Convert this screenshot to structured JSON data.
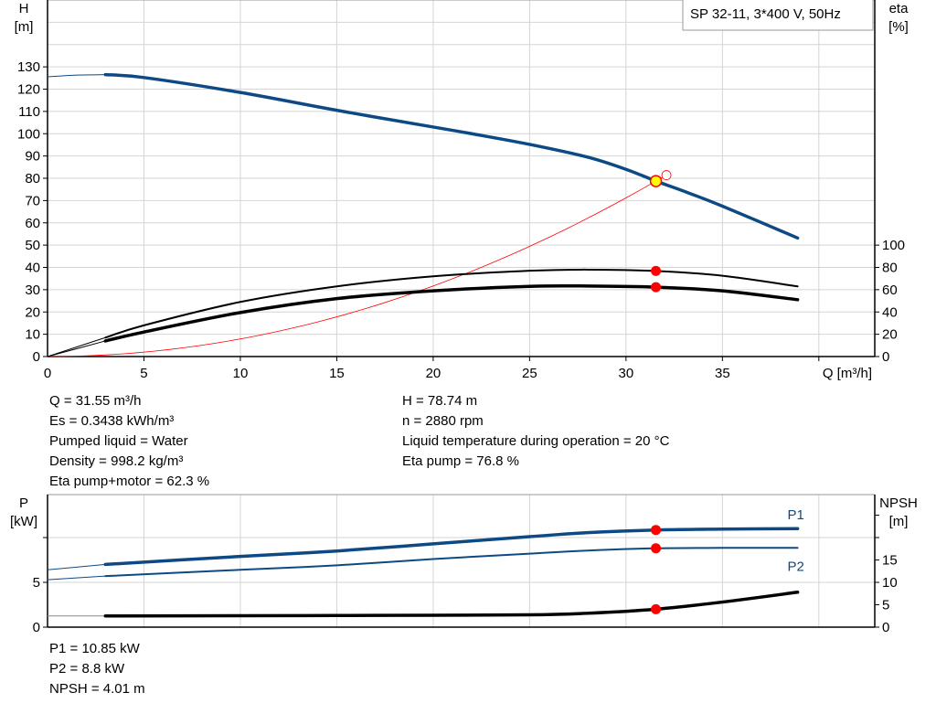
{
  "chart_data": [
    {
      "type": "line",
      "title": "SP 32-11, 3*400 V, 50Hz",
      "xlabel": "Q [m³/h]",
      "ylabel_left": [
        "H",
        "[m]"
      ],
      "ylabel_right": [
        "eta",
        "[%]"
      ],
      "xlim": [
        0,
        42.9
      ],
      "ylim_left": [
        0,
        160
      ],
      "ylim_right": [
        0,
        320
      ],
      "xticks": [
        0,
        5,
        10,
        15,
        20,
        25,
        30,
        35
      ],
      "xgrid": [
        5,
        10,
        15,
        20,
        25,
        30,
        35,
        40
      ],
      "yticks_left": [
        0,
        10,
        20,
        30,
        40,
        50,
        60,
        70,
        80,
        90,
        100,
        110,
        120,
        130
      ],
      "ygrid_left": [
        10,
        20,
        30,
        40,
        50,
        60,
        70,
        80,
        90,
        100,
        110,
        120,
        130,
        140,
        150
      ],
      "yticks_right": [
        0,
        20,
        40,
        60,
        80,
        100
      ],
      "grid": true,
      "thin_until": 3,
      "series": [
        {
          "axis": "left",
          "color": "#0d4a85",
          "width": 3.5,
          "x": [
            0,
            1.5,
            3,
            5,
            10,
            15,
            20,
            22,
            25,
            28,
            30,
            31.55,
            33,
            35,
            38.9
          ],
          "y": [
            125.5,
            126.3,
            126.5,
            125.2,
            118.5,
            110.5,
            103,
            100,
            95.2,
            89.5,
            84,
            78.74,
            74.2,
            67.5,
            53.2
          ]
        },
        {
          "axis": "right",
          "color": "#000000",
          "width": 2,
          "x": [
            0,
            3,
            5,
            10,
            15,
            20,
            25,
            28,
            31.55,
            35,
            38.9
          ],
          "y": [
            0,
            17,
            28,
            49,
            63,
            72,
            77,
            78,
            76.8,
            72.5,
            63
          ]
        },
        {
          "axis": "right",
          "color": "#000000",
          "width": 3.5,
          "x": [
            0,
            3,
            5,
            10,
            15,
            20,
            25,
            28,
            31.55,
            35,
            38.9
          ],
          "y": [
            0,
            14,
            22,
            39.5,
            52,
            59,
            63,
            63.3,
            62.3,
            59,
            51
          ]
        }
      ],
      "system_curve": {
        "color": "#ff0000",
        "h_at_duty": 78.74,
        "q_at_duty": 31.55,
        "q_end": 32,
        "h_end": 81
      },
      "duty_point": {
        "x": 31.55,
        "y": 78.74,
        "fill": "#ffff00",
        "stroke": "#ff0000"
      },
      "eta_points": [
        76.8,
        62.3
      ],
      "marker_color": "#ff0000"
    },
    {
      "type": "line",
      "ylabel_left": [
        "P",
        "[kW]"
      ],
      "ylabel_right": [
        "NPSH",
        "[m]"
      ],
      "xlim": [
        0,
        42.9
      ],
      "ylim_left": [
        0,
        14.8
      ],
      "ylim_right": [
        0,
        29.6
      ],
      "xgrid": [
        5,
        10,
        15,
        20,
        25,
        30,
        35,
        40
      ],
      "yticks_left": [
        0,
        5,
        10
      ],
      "yticklabels_left": [
        "0",
        "5",
        ""
      ],
      "yticks_right": [
        0,
        5,
        10,
        15,
        20,
        25
      ],
      "yticklabels_right": [
        "0",
        "5",
        "10",
        "15",
        "",
        ""
      ],
      "ygrid_left": [
        5,
        10
      ],
      "thin_until": 3,
      "series": [
        {
          "name": "P1",
          "axis": "left",
          "color": "#0d4a85",
          "width": 3.5,
          "x": [
            0,
            3,
            10,
            15,
            20,
            25,
            28,
            31.55,
            35,
            38.9
          ],
          "y": [
            6.4,
            7.0,
            7.9,
            8.5,
            9.3,
            10.1,
            10.55,
            10.85,
            10.95,
            11.0
          ]
        },
        {
          "name": "P2",
          "axis": "left",
          "color": "#0d4a85",
          "width": 2,
          "x": [
            0,
            3,
            10,
            15,
            20,
            25,
            28,
            31.55,
            35,
            38.9
          ],
          "y": [
            5.3,
            5.7,
            6.4,
            6.9,
            7.6,
            8.2,
            8.55,
            8.8,
            8.85,
            8.85
          ]
        },
        {
          "axis": "right",
          "color": "#000000",
          "width": 3.5,
          "x": [
            0,
            3,
            10,
            15,
            20,
            25,
            28,
            31.55,
            35,
            38.9
          ],
          "y": [
            2.5,
            2.5,
            2.55,
            2.6,
            2.65,
            2.75,
            3.1,
            4.01,
            5.6,
            7.8
          ]
        }
      ],
      "duty_q": 31.55,
      "marker_color": "#ff0000"
    }
  ],
  "info": {
    "left": [
      "Q = 31.55 m³/h",
      "Es = 0.3438 kWh/m³",
      "Pumped liquid = Water",
      "Density = 998.2 kg/m³",
      "Eta pump+motor = 62.3 %"
    ],
    "right": [
      "H = 78.74 m",
      "n = 2880 rpm",
      "Liquid temperature during operation = 20 °C",
      "Eta pump = 76.8 %"
    ],
    "bottom": [
      "P1 = 10.85 kW",
      "P2 = 8.8 kW",
      "NPSH = 4.01 m"
    ]
  }
}
